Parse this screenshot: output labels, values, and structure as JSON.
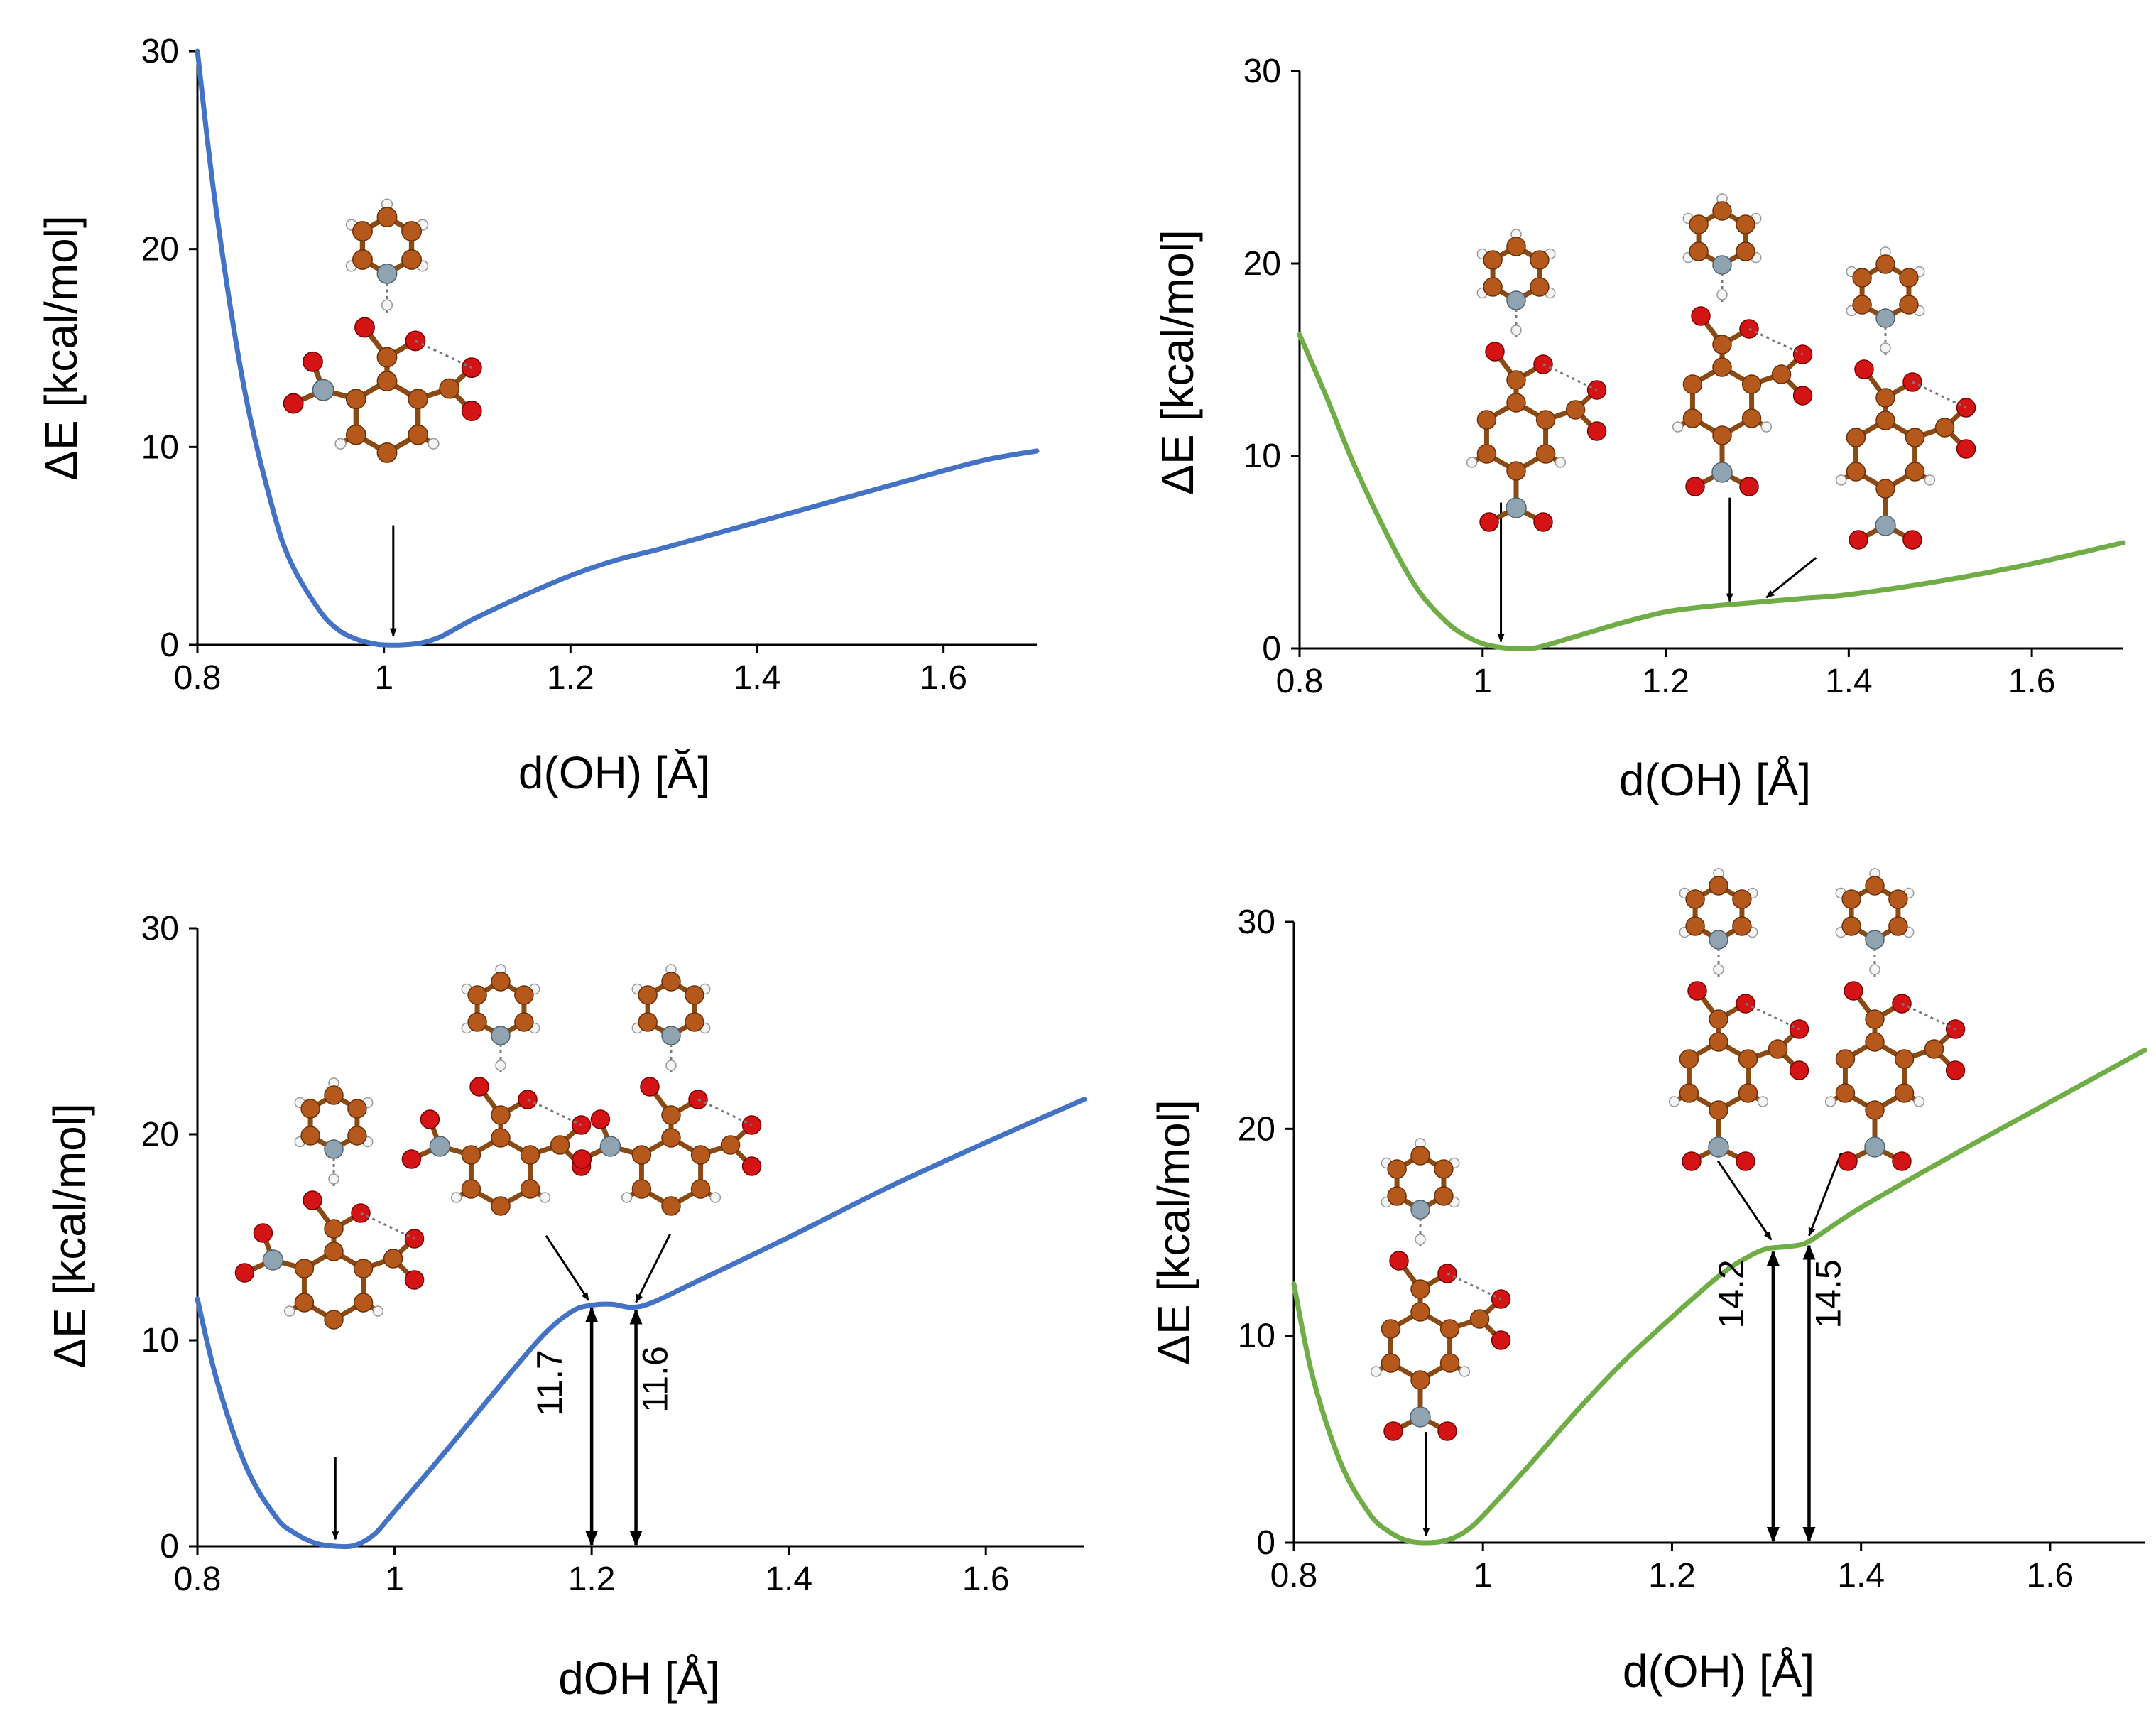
{
  "chart_data": [
    {
      "type": "line",
      "panel": "top-left",
      "xlabel": "d(OH) [Ă]",
      "ylabel": "ΔE [kcal/mol]",
      "xlim": [
        0.8,
        1.7
      ],
      "ylim": [
        0,
        30
      ],
      "xticks": [
        0.8,
        1,
        1.2,
        1.4,
        1.6
      ],
      "xtick_labels": [
        "0.8",
        "1",
        "1.2",
        "1.4",
        "1.6"
      ],
      "yticks": [
        0,
        10,
        20,
        30
      ],
      "ytick_labels": [
        "0",
        "10",
        "20",
        "30"
      ],
      "color": "#4472c4",
      "series": [
        {
          "name": "ΔE",
          "x": [
            0.8,
            0.82,
            0.85,
            0.88,
            0.9,
            0.93,
            0.95,
            0.97,
            0.99,
            1.0,
            1.02,
            1.04,
            1.06,
            1.08,
            1.1,
            1.15,
            1.2,
            1.25,
            1.3,
            1.4,
            1.5,
            1.6,
            1.65,
            1.7
          ],
          "y": [
            30.0,
            22.0,
            13.0,
            7.0,
            4.2,
            1.8,
            0.8,
            0.3,
            0.05,
            0.0,
            0.0,
            0.1,
            0.4,
            0.9,
            1.4,
            2.5,
            3.5,
            4.3,
            4.9,
            6.2,
            7.5,
            8.8,
            9.4,
            9.8
          ]
        }
      ],
      "annotations": [
        {
          "type": "arrow",
          "target_x": 1.01,
          "target_y": 0.3,
          "label": ""
        }
      ]
    },
    {
      "type": "line",
      "panel": "top-right",
      "xlabel": "d(OH) [Å]",
      "ylabel": "ΔE [kcal/mol]",
      "xlim": [
        0.8,
        1.7
      ],
      "ylim": [
        0,
        30
      ],
      "xticks": [
        0.8,
        1,
        1.2,
        1.4,
        1.6
      ],
      "xtick_labels": [
        "0.8",
        "1",
        "1.2",
        "1.4",
        "1.6"
      ],
      "yticks": [
        0,
        10,
        20,
        30
      ],
      "ytick_labels": [
        "0",
        "10",
        "20",
        "30"
      ],
      "color": "#70ad47",
      "series": [
        {
          "name": "ΔE",
          "x": [
            0.8,
            0.83,
            0.86,
            0.9,
            0.93,
            0.96,
            0.98,
            1.0,
            1.02,
            1.04,
            1.06,
            1.1,
            1.15,
            1.2,
            1.25,
            1.3,
            1.35,
            1.4,
            1.5,
            1.6,
            1.7
          ],
          "y": [
            16.3,
            13.0,
            9.5,
            5.5,
            3.0,
            1.4,
            0.7,
            0.25,
            0.05,
            0.0,
            0.05,
            0.6,
            1.3,
            1.9,
            2.2,
            2.4,
            2.6,
            2.8,
            3.5,
            4.4,
            5.5
          ]
        }
      ],
      "annotations": [
        {
          "type": "arrow",
          "target_x": 1.02,
          "target_y": 0.2,
          "label": ""
        },
        {
          "type": "arrow",
          "target_x": 1.27,
          "target_y": 2.3,
          "label": ""
        },
        {
          "type": "arrow",
          "target_x": 1.31,
          "target_y": 2.5,
          "label": ""
        }
      ]
    },
    {
      "type": "line",
      "panel": "bottom-left",
      "xlabel": "dOH [Å]",
      "ylabel": "ΔE [kcal/mol]",
      "xlim": [
        0.8,
        1.7
      ],
      "ylim": [
        0,
        30
      ],
      "xticks": [
        0.8,
        1,
        1.2,
        1.4,
        1.6
      ],
      "xtick_labels": [
        "0.8",
        "1",
        "1.2",
        "1.4",
        "1.6"
      ],
      "yticks": [
        0,
        10,
        20,
        30
      ],
      "ytick_labels": [
        "0",
        "10",
        "20",
        "30"
      ],
      "color": "#4472c4",
      "series": [
        {
          "name": "ΔE",
          "x": [
            0.8,
            0.82,
            0.85,
            0.88,
            0.9,
            0.92,
            0.94,
            0.96,
            0.98,
            1.0,
            1.05,
            1.1,
            1.15,
            1.18,
            1.2,
            1.22,
            1.24,
            1.26,
            1.3,
            1.4,
            1.5,
            1.6,
            1.7
          ],
          "y": [
            12.0,
            8.0,
            3.8,
            1.4,
            0.6,
            0.15,
            0.0,
            0.05,
            0.6,
            1.7,
            4.5,
            7.4,
            10.2,
            11.4,
            11.7,
            11.75,
            11.6,
            11.8,
            12.7,
            15.0,
            17.4,
            19.6,
            21.7
          ]
        }
      ],
      "annotations": [
        {
          "type": "arrow",
          "target_x": 0.94,
          "target_y": 0.2,
          "label": ""
        },
        {
          "type": "arrow",
          "target_x": 1.197,
          "target_y": 11.8,
          "label": ""
        },
        {
          "type": "arrow",
          "target_x": 1.245,
          "target_y": 11.7,
          "label": ""
        },
        {
          "type": "double-arrow",
          "x": 1.2,
          "from": 0,
          "to": 11.7,
          "label": "11.7"
        },
        {
          "type": "double-arrow",
          "x": 1.245,
          "from": 0,
          "to": 11.6,
          "label": "11.6"
        }
      ]
    },
    {
      "type": "line",
      "panel": "bottom-right",
      "xlabel": "d(OH) [Å]",
      "ylabel": "ΔE [kcal/mol]",
      "xlim": [
        0.8,
        1.7
      ],
      "ylim": [
        0,
        30
      ],
      "xticks": [
        0.8,
        1,
        1.2,
        1.4,
        1.6
      ],
      "xtick_labels": [
        "0.8",
        "1",
        "1.2",
        "1.4",
        "1.6"
      ],
      "yticks": [
        0,
        10,
        20,
        30
      ],
      "ytick_labels": [
        "0",
        "10",
        "20",
        "30"
      ],
      "color": "#70ad47",
      "series": [
        {
          "name": "ΔE",
          "x": [
            0.8,
            0.82,
            0.85,
            0.88,
            0.9,
            0.92,
            0.94,
            0.96,
            0.98,
            1.0,
            1.05,
            1.1,
            1.15,
            1.2,
            1.25,
            1.28,
            1.3,
            1.32,
            1.34,
            1.36,
            1.4,
            1.5,
            1.6,
            1.7
          ],
          "y": [
            12.5,
            8.0,
            3.8,
            1.4,
            0.55,
            0.1,
            0.0,
            0.1,
            0.5,
            1.3,
            3.8,
            6.4,
            8.8,
            10.9,
            12.9,
            13.8,
            14.2,
            14.3,
            14.45,
            15.0,
            16.2,
            18.8,
            21.3,
            23.8
          ]
        }
      ],
      "annotations": [
        {
          "type": "arrow",
          "target_x": 0.94,
          "target_y": 0.2,
          "label": ""
        },
        {
          "type": "arrow",
          "target_x": 1.305,
          "target_y": 14.5,
          "label": ""
        },
        {
          "type": "arrow",
          "target_x": 1.345,
          "target_y": 14.7,
          "label": ""
        },
        {
          "type": "double-arrow",
          "x": 1.307,
          "from": 0,
          "to": 14.2,
          "label": "14.2"
        },
        {
          "type": "double-arrow",
          "x": 1.345,
          "from": 0,
          "to": 14.5,
          "label": "14.5"
        }
      ]
    }
  ]
}
